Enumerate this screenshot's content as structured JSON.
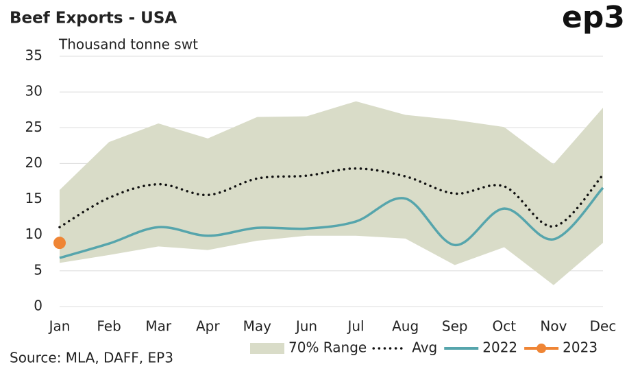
{
  "chart_data": {
    "type": "line",
    "title": "Beef Exports - USA",
    "logo": "ep3",
    "y_label": "Thousand tonne swt",
    "source": "Source: MLA, DAFF, EP3",
    "categories": [
      "Jan",
      "Feb",
      "Mar",
      "Apr",
      "May",
      "Jun",
      "Jul",
      "Aug",
      "Sep",
      "Oct",
      "Nov",
      "Dec"
    ],
    "ylim": [
      0,
      35
    ],
    "yticks": [
      0,
      5,
      10,
      15,
      20,
      25,
      30,
      35
    ],
    "grid": true,
    "series": [
      {
        "name": "70% Range",
        "color": "#d9dcc8",
        "kind": "band",
        "high": [
          16.3,
          23,
          25.6,
          23.5,
          26.5,
          26.6,
          28.7,
          26.8,
          26.1,
          25.1,
          19.9,
          27.8
        ],
        "low": [
          6.1,
          7.2,
          8.4,
          7.9,
          9.2,
          9.9,
          9.9,
          9.5,
          5.8,
          8.3,
          3.0,
          8.9
        ]
      },
      {
        "name": "Avg",
        "color": "#111111",
        "kind": "dotted",
        "values": [
          11.1,
          15.2,
          17.1,
          15.6,
          17.9,
          18.3,
          19.3,
          18.2,
          15.8,
          16.8,
          11.2,
          18.4
        ]
      },
      {
        "name": "2022",
        "color": "#56a5ac",
        "kind": "line",
        "values": [
          6.8,
          8.8,
          11.1,
          9.9,
          11,
          10.9,
          11.9,
          15.1,
          8.6,
          13.7,
          9.4,
          16.6
        ]
      },
      {
        "name": "2023",
        "color": "#ef8535",
        "kind": "marker",
        "values": [
          8.9,
          null,
          null,
          null,
          null,
          null,
          null,
          null,
          null,
          null,
          null,
          null
        ]
      }
    ]
  }
}
